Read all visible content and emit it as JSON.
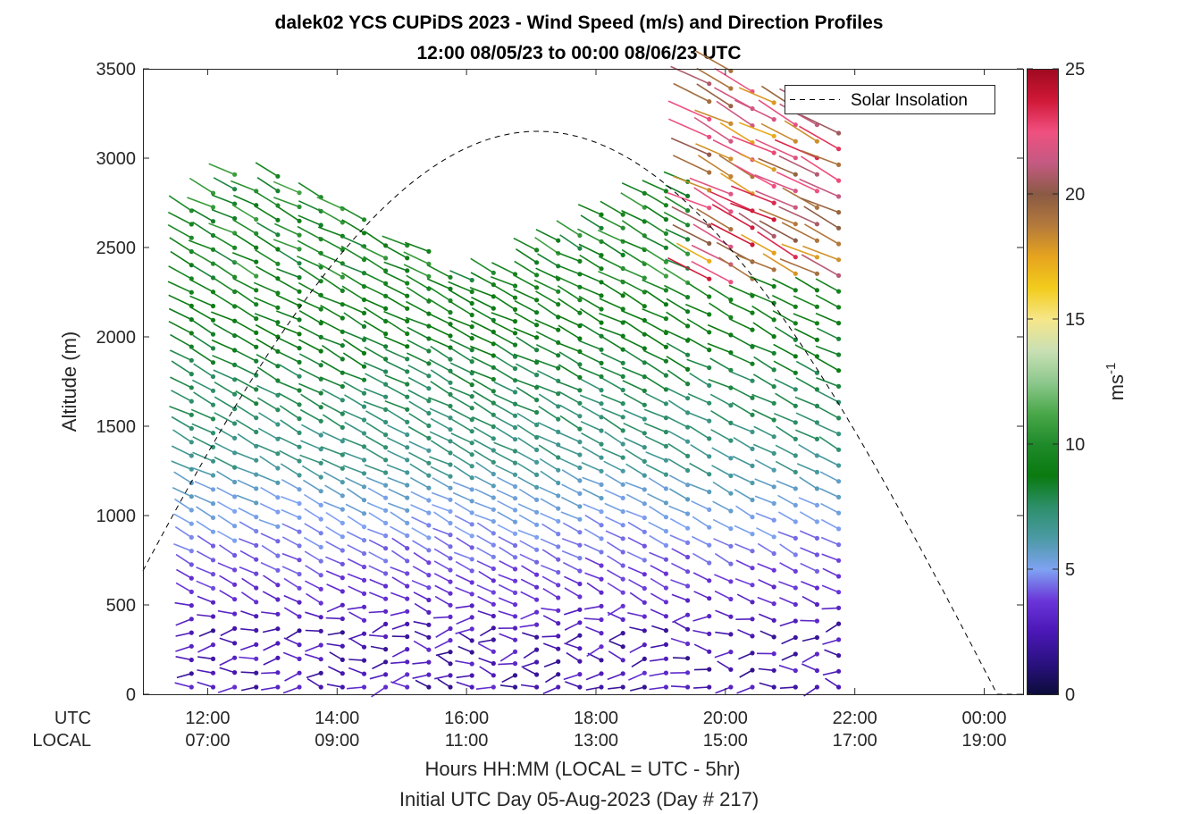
{
  "chart_data": {
    "type": "wind-barb-profile",
    "title_line1": "dalek02 YCS CUPiDS 2023 - Wind Speed (m/s) and Direction Profiles",
    "title_line2": "12:00 08/05/23 to 00:00 08/06/23  UTC",
    "ylabel": "Altitude (m)",
    "xlabel_line1": "Hours HH:MM  (LOCAL = UTC - 5hr)",
    "xlabel_line2": "Initial UTC Day 05-Aug-2023 (Day # 217)",
    "xlim_hours_utc": [
      11.0,
      24.6
    ],
    "ylim_m": [
      0,
      3500
    ],
    "yticks": [
      0,
      500,
      1000,
      1500,
      2000,
      2500,
      3000,
      3500
    ],
    "ytick_labels": [
      "0",
      "500",
      "1000",
      "1500",
      "2000",
      "2500",
      "3000",
      "3500"
    ],
    "xtick_hours": [
      12,
      14,
      16,
      18,
      20,
      22,
      24
    ],
    "xtick_labels_utc": [
      "12:00",
      "14:00",
      "16:00",
      "18:00",
      "20:00",
      "22:00",
      "00:00"
    ],
    "xtick_labels_local": [
      "07:00",
      "09:00",
      "11:00",
      "13:00",
      "15:00",
      "17:00",
      "19:00"
    ],
    "row_label_utc": "UTC",
    "row_label_local": "LOCAL",
    "legend": {
      "label": "Solar Insolation",
      "style": "dashed",
      "placement": "top-right"
    },
    "solar_insolation": {
      "peak_hour_utc": 17.1,
      "peak_altitude_m": 3150,
      "zero_hour_utc": 24.2
    },
    "colorbar": {
      "label": "ms",
      "label_superscript": "-1",
      "range": [
        0,
        25
      ],
      "ticks": [
        0,
        5,
        10,
        15,
        20,
        25
      ],
      "tick_labels": [
        "0",
        "5",
        "10",
        "15",
        "20",
        "25"
      ],
      "colors": [
        "#0c0c3a",
        "#2a1180",
        "#4a17b5",
        "#6a35d8",
        "#7fa2f2",
        "#4b9aa5",
        "#2d8f6a",
        "#0a7a10",
        "#1f8a2a",
        "#4aa84a",
        "#8ec88e",
        "#c9e0b4",
        "#f6e68a",
        "#f2cc1c",
        "#e6a41e",
        "#b47a3c",
        "#8a5a44",
        "#c45a82",
        "#f05080",
        "#d01838",
        "#a00a20"
      ]
    },
    "profiles_start_hour_utc": 11.75,
    "profiles_end_hour_utc": 22.0,
    "profile_interval_minutes": 20,
    "samples_per_profile": 36,
    "barb_style": "line-with-dot",
    "grid": false
  }
}
